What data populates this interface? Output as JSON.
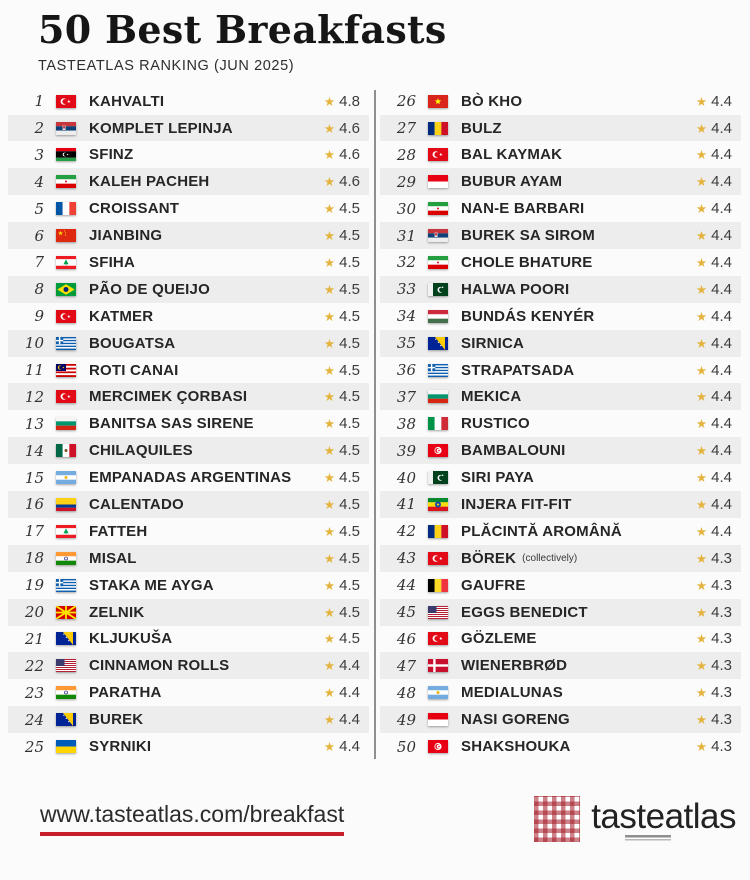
{
  "header": {
    "title": "50 Best Breakfasts",
    "subtitle": "TASTEATLAS RANKING (JUN 2025)"
  },
  "theme": {
    "star_gold": "#E3B33C",
    "accent_red": "#C81E2B",
    "stripe_gray": "#EDEDED"
  },
  "list": {
    "star_glyph": "★",
    "left": [
      {
        "rank": "1",
        "flag": "turkey",
        "name": "KAHVALTI",
        "rating": "4.8"
      },
      {
        "rank": "2",
        "flag": "serbia",
        "name": "KOMPLET LEPINJA",
        "rating": "4.6"
      },
      {
        "rank": "3",
        "flag": "libya",
        "name": "SFINZ",
        "rating": "4.6"
      },
      {
        "rank": "4",
        "flag": "iran",
        "name": "KALEH PACHEH",
        "rating": "4.6"
      },
      {
        "rank": "5",
        "flag": "france",
        "name": "CROISSANT",
        "rating": "4.5"
      },
      {
        "rank": "6",
        "flag": "china",
        "name": "JIANBING",
        "rating": "4.5"
      },
      {
        "rank": "7",
        "flag": "lebanon",
        "name": "SFIHA",
        "rating": "4.5"
      },
      {
        "rank": "8",
        "flag": "brazil",
        "name": "PÃO DE QUEIJO",
        "rating": "4.5"
      },
      {
        "rank": "9",
        "flag": "turkey",
        "name": "KATMER",
        "rating": "4.5"
      },
      {
        "rank": "10",
        "flag": "greece",
        "name": "BOUGATSA",
        "rating": "4.5"
      },
      {
        "rank": "11",
        "flag": "malaysia",
        "name": "ROTI CANAI",
        "rating": "4.5"
      },
      {
        "rank": "12",
        "flag": "turkey",
        "name": "MERCIMEK ÇORBASI",
        "rating": "4.5"
      },
      {
        "rank": "13",
        "flag": "bulgaria",
        "name": "BANITSA SAS SIRENE",
        "rating": "4.5"
      },
      {
        "rank": "14",
        "flag": "mexico",
        "name": "CHILAQUILES",
        "rating": "4.5"
      },
      {
        "rank": "15",
        "flag": "argentina",
        "name": "EMPANADAS ARGENTINAS",
        "rating": "4.5"
      },
      {
        "rank": "16",
        "flag": "colombia",
        "name": "CALENTADO",
        "rating": "4.5"
      },
      {
        "rank": "17",
        "flag": "lebanon",
        "name": "FATTEH",
        "rating": "4.5"
      },
      {
        "rank": "18",
        "flag": "india",
        "name": "MISAL",
        "rating": "4.5"
      },
      {
        "rank": "19",
        "flag": "greece",
        "name": "STAKA ME AYGA",
        "rating": "4.5"
      },
      {
        "rank": "20",
        "flag": "north_macedonia",
        "name": "ZELNIK",
        "rating": "4.5"
      },
      {
        "rank": "21",
        "flag": "bosnia",
        "name": "KLJUKUŠA",
        "rating": "4.5"
      },
      {
        "rank": "22",
        "flag": "usa",
        "name": "CINNAMON ROLLS",
        "rating": "4.4"
      },
      {
        "rank": "23",
        "flag": "india",
        "name": "PARATHA",
        "rating": "4.4"
      },
      {
        "rank": "24",
        "flag": "bosnia",
        "name": "BUREK",
        "rating": "4.4"
      },
      {
        "rank": "25",
        "flag": "ukraine",
        "name": "SYRNIKI",
        "rating": "4.4"
      }
    ],
    "right": [
      {
        "rank": "26",
        "flag": "vietnam",
        "name": "BÒ KHO",
        "rating": "4.4"
      },
      {
        "rank": "27",
        "flag": "romania",
        "name": "BULZ",
        "rating": "4.4"
      },
      {
        "rank": "28",
        "flag": "turkey",
        "name": "BAL KAYMAK",
        "rating": "4.4"
      },
      {
        "rank": "29",
        "flag": "indonesia",
        "name": "BUBUR AYAM",
        "rating": "4.4"
      },
      {
        "rank": "30",
        "flag": "iran",
        "name": "NAN-E BARBARI",
        "rating": "4.4"
      },
      {
        "rank": "31",
        "flag": "serbia",
        "name": "BUREK SA SIROM",
        "rating": "4.4"
      },
      {
        "rank": "32",
        "flag": "iran",
        "name": "CHOLE BHATURE",
        "rating": "4.4"
      },
      {
        "rank": "33",
        "flag": "pakistan",
        "name": "HALWA POORI",
        "rating": "4.4"
      },
      {
        "rank": "34",
        "flag": "hungary",
        "name": "BUNDÁS KENYÉR",
        "rating": "4.4"
      },
      {
        "rank": "35",
        "flag": "bosnia",
        "name": "SIRNICA",
        "rating": "4.4"
      },
      {
        "rank": "36",
        "flag": "greece",
        "name": "STRAPATSADA",
        "rating": "4.4"
      },
      {
        "rank": "37",
        "flag": "bulgaria",
        "name": "MEKICA",
        "rating": "4.4"
      },
      {
        "rank": "38",
        "flag": "italy",
        "name": "RUSTICO",
        "rating": "4.4"
      },
      {
        "rank": "39",
        "flag": "tunisia",
        "name": "BAMBALOUNI",
        "rating": "4.4"
      },
      {
        "rank": "40",
        "flag": "pakistan",
        "name": "SIRI PAYA",
        "rating": "4.4"
      },
      {
        "rank": "41",
        "flag": "ethiopia",
        "name": "INJERA FIT-FIT",
        "rating": "4.4"
      },
      {
        "rank": "42",
        "flag": "romania",
        "name": "PLĂCINTĂ AROMÂNĂ",
        "rating": "4.4"
      },
      {
        "rank": "43",
        "flag": "turkey",
        "name": "BÖREK",
        "note": "(collectively)",
        "rating": "4.3"
      },
      {
        "rank": "44",
        "flag": "belgium",
        "name": "GAUFRE",
        "rating": "4.3"
      },
      {
        "rank": "45",
        "flag": "usa",
        "name": "EGGS BENEDICT",
        "rating": "4.3"
      },
      {
        "rank": "46",
        "flag": "turkey",
        "name": "GÖZLEME",
        "rating": "4.3"
      },
      {
        "rank": "47",
        "flag": "denmark",
        "name": "WIENERBRØD",
        "rating": "4.3"
      },
      {
        "rank": "48",
        "flag": "argentina",
        "name": "MEDIALUNAS",
        "rating": "4.3"
      },
      {
        "rank": "49",
        "flag": "indonesia",
        "name": "NASI GORENG",
        "rating": "4.3"
      },
      {
        "rank": "50",
        "flag": "tunisia",
        "name": "SHAKSHOUKA",
        "rating": "4.3"
      }
    ]
  },
  "footer": {
    "url": "www.tasteatlas.com/breakfast",
    "logo_text": "tasteatlas"
  }
}
